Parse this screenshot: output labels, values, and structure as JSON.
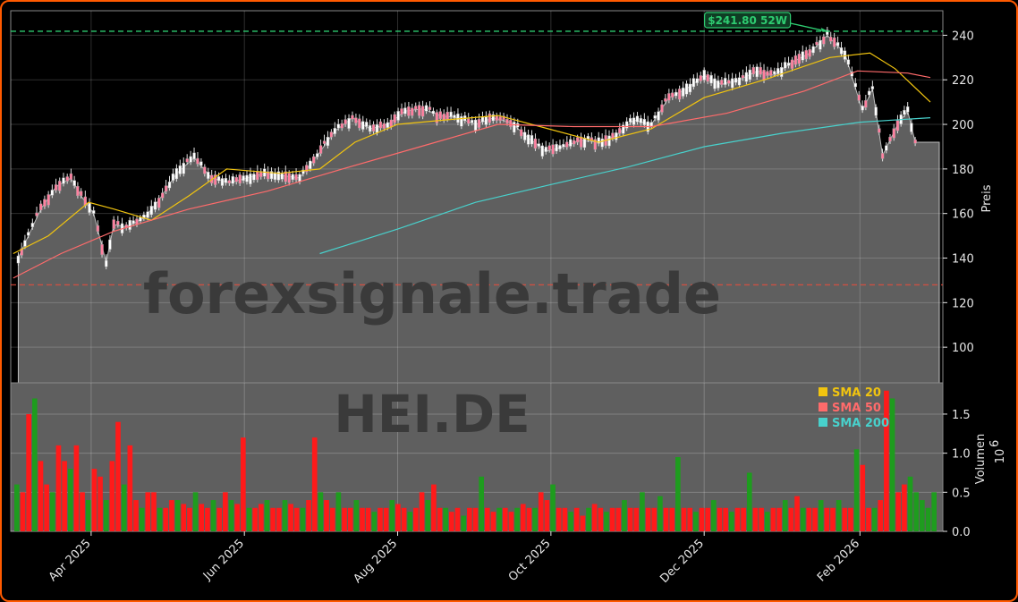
{
  "chart_data": [
    {
      "type": "candlestick",
      "ticker": "HEI.DE",
      "watermark": "forexsignale.trade",
      "ylabel": "Preis",
      "ylim": [
        84,
        251
      ],
      "yticks": [
        100,
        120,
        140,
        160,
        180,
        200,
        220,
        240
      ],
      "x_tick_labels": [
        "Apr 2025",
        "Jun 2025",
        "Aug 2025",
        "Oct 2025",
        "Dec 2025",
        "Feb 2026"
      ],
      "x_tick_dates": [
        "2025-04-01",
        "2025-06-01",
        "2025-08-01",
        "2025-10-01",
        "2025-12-01",
        "2026-02-01"
      ],
      "high_52w": {
        "label": "$241.80 52W",
        "value": 241.8,
        "color": "#2ecc71"
      },
      "low_line": {
        "value": 128,
        "color": "#e74c3c"
      },
      "grid": true,
      "price_series": [
        [
          "2025-03-03",
          140
        ],
        [
          "2025-03-07",
          150
        ],
        [
          "2025-03-12",
          162
        ],
        [
          "2025-03-18",
          172
        ],
        [
          "2025-03-24",
          176
        ],
        [
          "2025-03-28",
          168
        ],
        [
          "2025-04-02",
          160
        ],
        [
          "2025-04-07",
          138
        ],
        [
          "2025-04-10",
          155
        ],
        [
          "2025-04-15",
          154
        ],
        [
          "2025-04-22",
          158
        ],
        [
          "2025-04-28",
          166
        ],
        [
          "2025-05-05",
          178
        ],
        [
          "2025-05-12",
          185
        ],
        [
          "2025-05-19",
          176
        ],
        [
          "2025-05-26",
          174
        ],
        [
          "2025-06-02",
          176
        ],
        [
          "2025-06-09",
          178
        ],
        [
          "2025-06-16",
          177
        ],
        [
          "2025-06-23",
          176
        ],
        [
          "2025-06-30",
          186
        ],
        [
          "2025-07-07",
          197
        ],
        [
          "2025-07-14",
          203
        ],
        [
          "2025-07-21",
          198
        ],
        [
          "2025-07-28",
          200
        ],
        [
          "2025-08-04",
          206
        ],
        [
          "2025-08-11",
          207
        ],
        [
          "2025-08-18",
          204
        ],
        [
          "2025-08-25",
          203
        ],
        [
          "2025-09-01",
          200
        ],
        [
          "2025-09-08",
          203
        ],
        [
          "2025-09-15",
          201
        ],
        [
          "2025-09-22",
          194
        ],
        [
          "2025-09-29",
          188
        ],
        [
          "2025-10-06",
          190
        ],
        [
          "2025-10-13",
          193
        ],
        [
          "2025-10-20",
          192
        ],
        [
          "2025-10-27",
          195
        ],
        [
          "2025-11-03",
          202
        ],
        [
          "2025-11-10",
          200
        ],
        [
          "2025-11-17",
          212
        ],
        [
          "2025-11-24",
          216
        ],
        [
          "2025-12-01",
          222
        ],
        [
          "2025-12-08",
          218
        ],
        [
          "2025-12-15",
          220
        ],
        [
          "2025-12-22",
          224
        ],
        [
          "2025-12-29",
          222
        ],
        [
          "2026-01-05",
          228
        ],
        [
          "2026-01-12",
          232
        ],
        [
          "2026-01-19",
          240
        ],
        [
          "2026-01-26",
          232
        ],
        [
          "2026-02-02",
          206
        ],
        [
          "2026-02-06",
          216
        ],
        [
          "2026-02-10",
          186
        ],
        [
          "2026-02-16",
          200
        ],
        [
          "2026-02-20",
          206
        ],
        [
          "2026-02-23",
          192
        ],
        [
          "2026-02-28",
          192
        ]
      ],
      "sma_series": [
        {
          "name": "SMA 20",
          "color": "#f1c40f",
          "values": [
            [
              "2025-03-01",
              142
            ],
            [
              "2025-03-15",
              150
            ],
            [
              "2025-03-31",
              165
            ],
            [
              "2025-04-10",
              162
            ],
            [
              "2025-04-25",
              157
            ],
            [
              "2025-05-10",
              168
            ],
            [
              "2025-05-25",
              180
            ],
            [
              "2025-06-15",
              178
            ],
            [
              "2025-07-01",
              180
            ],
            [
              "2025-07-15",
              192
            ],
            [
              "2025-08-01",
              200
            ],
            [
              "2025-08-20",
              202
            ],
            [
              "2025-09-10",
              204
            ],
            [
              "2025-09-30",
              198
            ],
            [
              "2025-10-20",
              192
            ],
            [
              "2025-11-10",
              198
            ],
            [
              "2025-12-01",
              212
            ],
            [
              "2025-12-25",
              220
            ],
            [
              "2026-01-20",
              230
            ],
            [
              "2026-02-05",
              232
            ],
            [
              "2026-02-15",
              225
            ],
            [
              "2026-03-01",
              210
            ]
          ]
        },
        {
          "name": "SMA 50",
          "color": "#ff6b6b",
          "values": [
            [
              "2025-03-01",
              131
            ],
            [
              "2025-03-20",
              142
            ],
            [
              "2025-04-10",
              152
            ],
            [
              "2025-05-10",
              162
            ],
            [
              "2025-06-10",
              170
            ],
            [
              "2025-07-10",
              180
            ],
            [
              "2025-08-10",
              190
            ],
            [
              "2025-09-10",
              200
            ],
            [
              "2025-10-10",
              199
            ],
            [
              "2025-11-10",
              199
            ],
            [
              "2025-12-10",
              205
            ],
            [
              "2026-01-10",
              215
            ],
            [
              "2026-01-31",
              224
            ],
            [
              "2026-02-20",
              223
            ],
            [
              "2026-03-01",
              221
            ]
          ]
        },
        {
          "name": "SMA 200",
          "color": "#48d1cc",
          "values": [
            [
              "2025-07-01",
              142
            ],
            [
              "2025-08-01",
              153
            ],
            [
              "2025-09-01",
              165
            ],
            [
              "2025-10-01",
              173
            ],
            [
              "2025-11-01",
              181
            ],
            [
              "2025-12-01",
              190
            ],
            [
              "2026-01-01",
              196
            ],
            [
              "2026-02-01",
              201
            ],
            [
              "2026-03-01",
              203
            ]
          ]
        }
      ],
      "legend": {
        "placement": "upper-right",
        "entries": [
          "SMA 20",
          "SMA 50",
          "SMA 200"
        ]
      }
    },
    {
      "type": "bar",
      "ylabel": "Volumen",
      "ylabel_exponent": "10",
      "ylabel_exponent_power": "6",
      "ylim": [
        0,
        1.9
      ],
      "yticks": [
        "0.0",
        "0.5",
        "1.0",
        "1.5"
      ],
      "colors": {
        "up": "#1e9c1e",
        "down": "#ff1a1a"
      },
      "volume_pattern": [
        0.6,
        0.5,
        1.5,
        1.7,
        0.9,
        0.6,
        0.5,
        1.1,
        0.9,
        0.8,
        1.1,
        0.5,
        0.4,
        0.8,
        0.7,
        0.4,
        0.9,
        1.4,
        0.6,
        1.1,
        0.4,
        0.3,
        0.5,
        0.5,
        0.3,
        0.3,
        0.4,
        0.4,
        0.35,
        0.3,
        0.5,
        0.35,
        0.3,
        0.4,
        0.3,
        0.5,
        0.4,
        0.35,
        1.2,
        0.3,
        0.3,
        0.35,
        0.4,
        0.3,
        0.3,
        0.4,
        0.35,
        0.3,
        0.3,
        0.4,
        1.2,
        0.5,
        0.4,
        0.3,
        0.5,
        0.3,
        0.3,
        0.4,
        0.3,
        0.3,
        0.25,
        0.3,
        0.3,
        0.4,
        0.35,
        0.3,
        0.25,
        0.3,
        0.5,
        0.4,
        0.6,
        0.3,
        0.3,
        0.25,
        0.3,
        0.2,
        0.3,
        0.3,
        0.7,
        0.3,
        0.25,
        0.3,
        0.3,
        0.25,
        0.3,
        0.35,
        0.3,
        0.3,
        0.5,
        0.4,
        0.6,
        0.3,
        0.3,
        0.25,
        0.3,
        0.2,
        0.3,
        0.35,
        0.3,
        0.25,
        0.3,
        0.3,
        0.4,
        0.3,
        0.3,
        0.5,
        0.3,
        0.3,
        0.45,
        0.3,
        0.3,
        0.95,
        0.3,
        0.3,
        0.25,
        0.3,
        0.3,
        0.4,
        0.3,
        0.3,
        0.25,
        0.3,
        0.3,
        0.75,
        0.3,
        0.3,
        0.25,
        0.3,
        0.3,
        0.4,
        0.3,
        0.45,
        0.3,
        0.3,
        0.3,
        0.4,
        0.3,
        0.3,
        0.4,
        0.3,
        0.3,
        1.05,
        0.85,
        0.3,
        0.3,
        0.4,
        1.8,
        1.7,
        0.5,
        0.6,
        0.7,
        0.5,
        0.4,
        0.3,
        0.5
      ]
    }
  ]
}
